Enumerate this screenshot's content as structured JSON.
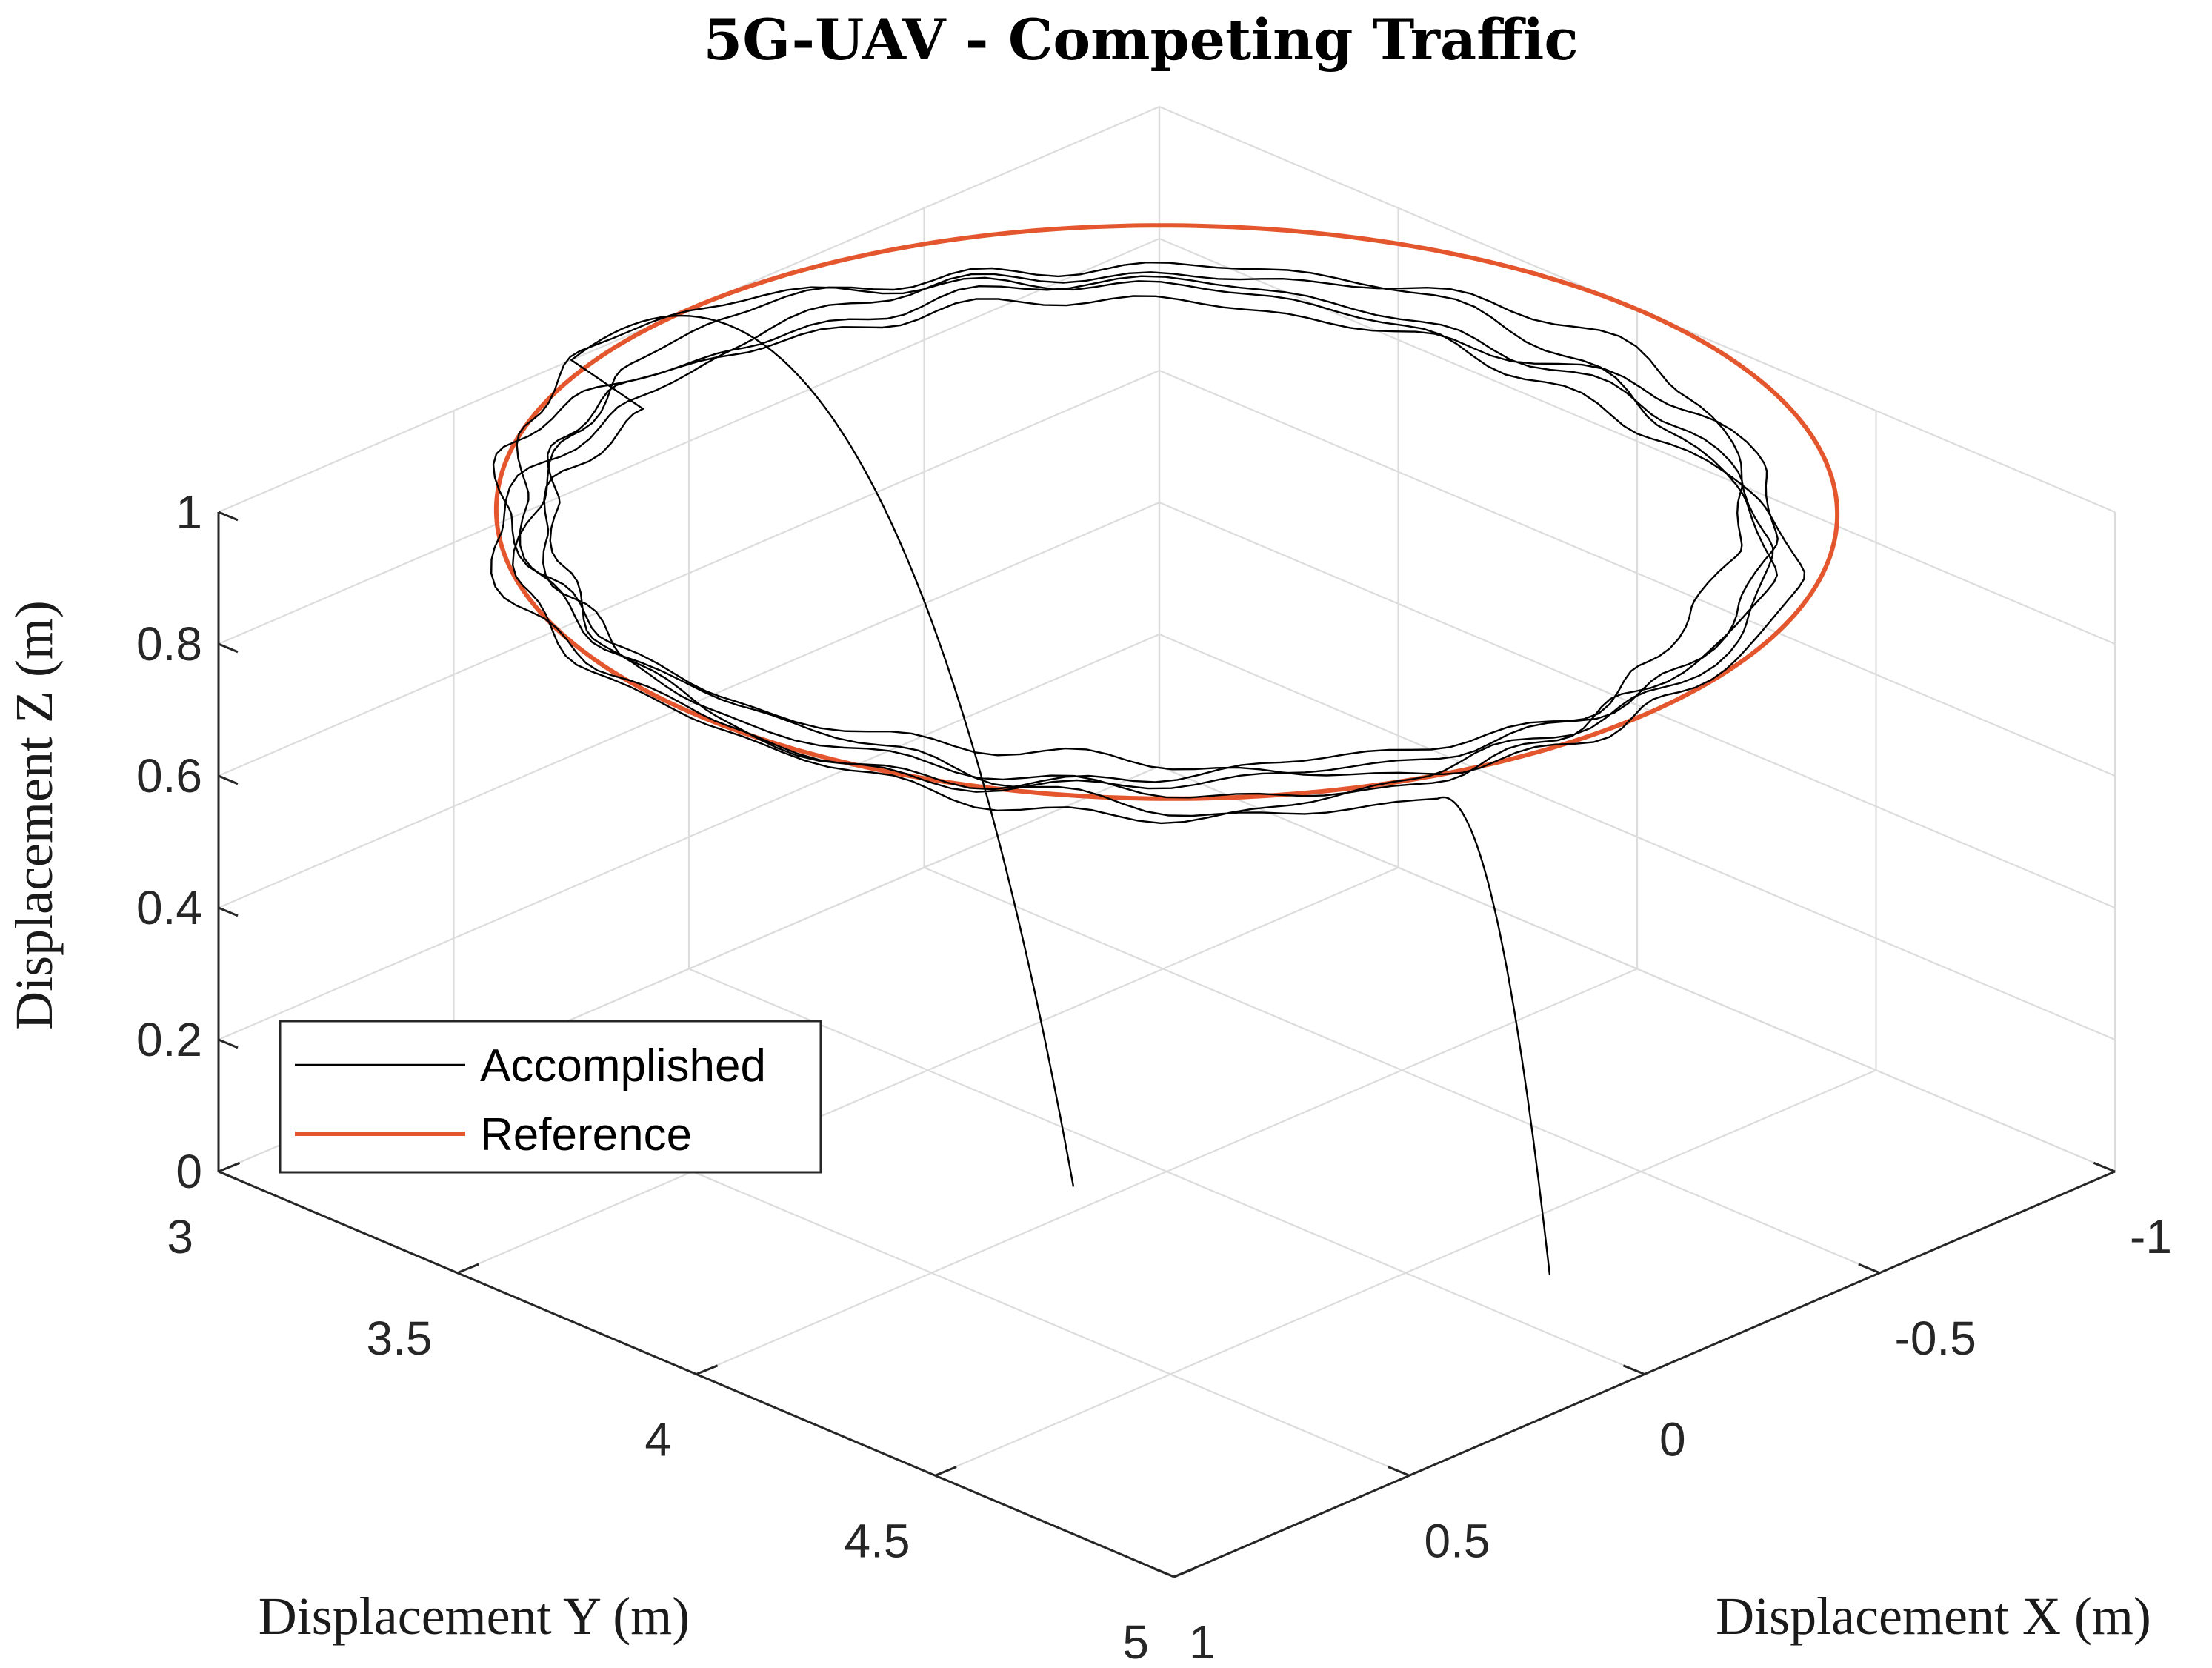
{
  "chart_data": {
    "type": "line3d",
    "title": "5G-UAV - Competing Traffic",
    "xlabel": "Displacement X (m)",
    "ylabel": "Displacement Y (m)",
    "zlabel": "Displacement Z (m)",
    "xlim": [
      -1,
      1
    ],
    "ylim": [
      3,
      5
    ],
    "zlim": [
      0,
      1
    ],
    "x_ticks": [
      1,
      0.5,
      0,
      -0.5,
      -1
    ],
    "x_tick_labels": [
      "1",
      "0.5",
      "0",
      "-0.5",
      "-1"
    ],
    "y_ticks": [
      3,
      3.5,
      4,
      4.5,
      5
    ],
    "y_tick_labels": [
      "3",
      "3.5",
      "4",
      "4.5",
      "5"
    ],
    "z_ticks": [
      0,
      0.2,
      0.4,
      0.6,
      0.8,
      1
    ],
    "z_tick_labels": [
      "0",
      "0.2",
      "0.4",
      "0.6",
      "0.8",
      "1"
    ],
    "grid": true,
    "legend_position": "bottom-left",
    "series": [
      {
        "name": "Accomplished",
        "color": "#000000",
        "style": "thin",
        "description_points": {
          "takeoff_start": {
            "x": 0.3,
            "y": 4.1,
            "z": 0.1
          },
          "start_entry": {
            "x": 0.25,
            "y": 3.0,
            "z": 1.0
          },
          "loop_center": {
            "x": 0.05,
            "y": 4.0,
            "z": 1.0
          },
          "loop_radius": 0.95,
          "loops": 5,
          "exit_point": {
            "x": 0.35,
            "y": 4.85,
            "z": 0.95
          },
          "landing_end": {
            "x": 0.1,
            "y": 4.9,
            "z": 0.15
          }
        }
      },
      {
        "name": "Reference",
        "color": "#e4572e",
        "style": "thick",
        "circle": {
          "center_x": 0.0,
          "center_y": 4.0,
          "radius": 1.0,
          "z": 1.0
        }
      }
    ]
  }
}
